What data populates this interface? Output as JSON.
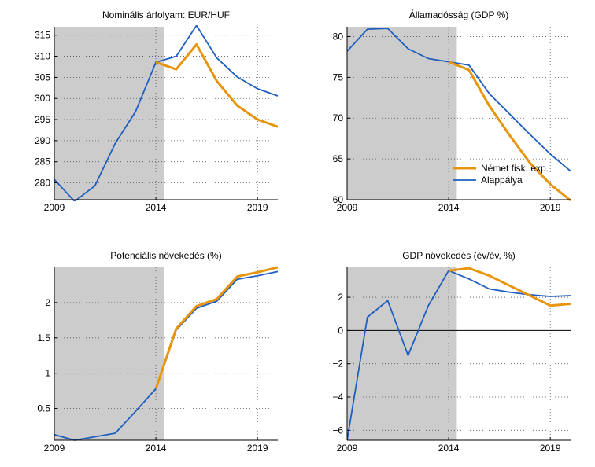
{
  "colors": {
    "german_fiscal": "#E8950E",
    "baseline": "#1F5FBF",
    "shade": "#CCCCCC",
    "grid": "#555555",
    "zero_line": "#000000"
  },
  "legend": {
    "german_fiscal_label": "Német fisk. exp.",
    "baseline_label": "Alappálya",
    "placement": "bottom-right"
  },
  "chart_data": [
    {
      "id": "exchange-rate",
      "type": "line",
      "title": "Nominális árfolyam: EUR/HUF",
      "xlim": [
        2009,
        2020
      ],
      "ylim": [
        276,
        317
      ],
      "xticks": [
        2009,
        2014,
        2019
      ],
      "yticks": [
        280,
        285,
        290,
        295,
        300,
        305,
        310,
        315
      ],
      "shade": [
        2009,
        2014.4
      ],
      "zero_line": false,
      "legend": false,
      "series": [
        {
          "name": "Alappálya",
          "key": "baseline",
          "x": [
            2009,
            2010,
            2011,
            2012,
            2013,
            2014,
            2015,
            2016,
            2017,
            2018,
            2019,
            2020
          ],
          "y": [
            280.8,
            275.6,
            279.3,
            289.4,
            296.9,
            308.6,
            310.0,
            317.3,
            309.6,
            305.1,
            302.3,
            300.6
          ]
        },
        {
          "name": "Német fisk. exp.",
          "key": "german_fiscal",
          "x": [
            2014,
            2015,
            2016,
            2017,
            2018,
            2019,
            2020
          ],
          "y": [
            308.6,
            306.9,
            312.8,
            304.1,
            298.3,
            295.0,
            293.3
          ]
        }
      ]
    },
    {
      "id": "public-debt",
      "type": "line",
      "title": "Államadósság (GDP %)",
      "xlim": [
        2009,
        2020
      ],
      "ylim": [
        60,
        81.2
      ],
      "xticks": [
        2009,
        2014,
        2019
      ],
      "yticks": [
        60,
        65,
        70,
        75,
        80
      ],
      "shade": [
        2009,
        2014.4
      ],
      "zero_line": false,
      "legend": true,
      "series": [
        {
          "name": "Alappálya",
          "key": "baseline",
          "x": [
            2009,
            2010,
            2011,
            2012,
            2013,
            2014,
            2015,
            2016,
            2017,
            2018,
            2019,
            2020
          ],
          "y": [
            78.2,
            80.9,
            81.0,
            78.5,
            77.3,
            76.9,
            76.5,
            73.0,
            70.5,
            68.0,
            65.6,
            63.5
          ]
        },
        {
          "name": "Német fisk. exp.",
          "key": "german_fiscal",
          "x": [
            2014,
            2015,
            2016,
            2017,
            2018,
            2019,
            2020
          ],
          "y": [
            76.9,
            75.9,
            71.5,
            67.9,
            64.5,
            61.9,
            59.9
          ]
        }
      ]
    },
    {
      "id": "potential-growth",
      "type": "line",
      "title": "Potenciális növekedés (%)",
      "xlim": [
        2009,
        2020
      ],
      "ylim": [
        0.05,
        2.5
      ],
      "xticks": [
        2009,
        2014,
        2019
      ],
      "yticks": [
        0.5,
        1,
        1.5,
        2
      ],
      "shade": [
        2009,
        2014.4
      ],
      "zero_line": false,
      "legend": false,
      "series": [
        {
          "name": "Alappálya",
          "key": "baseline",
          "x": [
            2009,
            2010,
            2011,
            2012,
            2013,
            2014,
            2015,
            2016,
            2017,
            2018,
            2019,
            2020
          ],
          "y": [
            0.13,
            0.05,
            0.1,
            0.15,
            0.46,
            0.78,
            1.61,
            1.92,
            2.02,
            2.33,
            2.38,
            2.44
          ]
        },
        {
          "name": "Német fisk. exp.",
          "key": "german_fiscal",
          "x": [
            2014,
            2015,
            2016,
            2017,
            2018,
            2019,
            2020
          ],
          "y": [
            0.78,
            1.63,
            1.95,
            2.05,
            2.37,
            2.43,
            2.5
          ]
        }
      ]
    },
    {
      "id": "gdp-growth",
      "type": "line",
      "title": "GDP növekedés (év/év, %)",
      "xlim": [
        2009,
        2020
      ],
      "ylim": [
        -6.6,
        3.8
      ],
      "xticks": [
        2009,
        2014,
        2019
      ],
      "yticks": [
        -6,
        -4,
        -2,
        0,
        2
      ],
      "shade": [
        2009,
        2014.4
      ],
      "zero_line": true,
      "legend": false,
      "series": [
        {
          "name": "Alappálya",
          "key": "baseline",
          "x": [
            2009,
            2010,
            2011,
            2012,
            2013,
            2014,
            2015,
            2016,
            2017,
            2018,
            2019,
            2020
          ],
          "y": [
            -6.6,
            0.8,
            1.8,
            -1.5,
            1.5,
            3.6,
            3.1,
            2.5,
            2.3,
            2.15,
            2.05,
            2.1
          ]
        },
        {
          "name": "Német fisk. exp.",
          "key": "german_fiscal",
          "x": [
            2014,
            2015,
            2016,
            2017,
            2018,
            2019,
            2020
          ],
          "y": [
            3.6,
            3.75,
            3.3,
            2.7,
            2.1,
            1.5,
            1.6
          ]
        }
      ]
    }
  ]
}
